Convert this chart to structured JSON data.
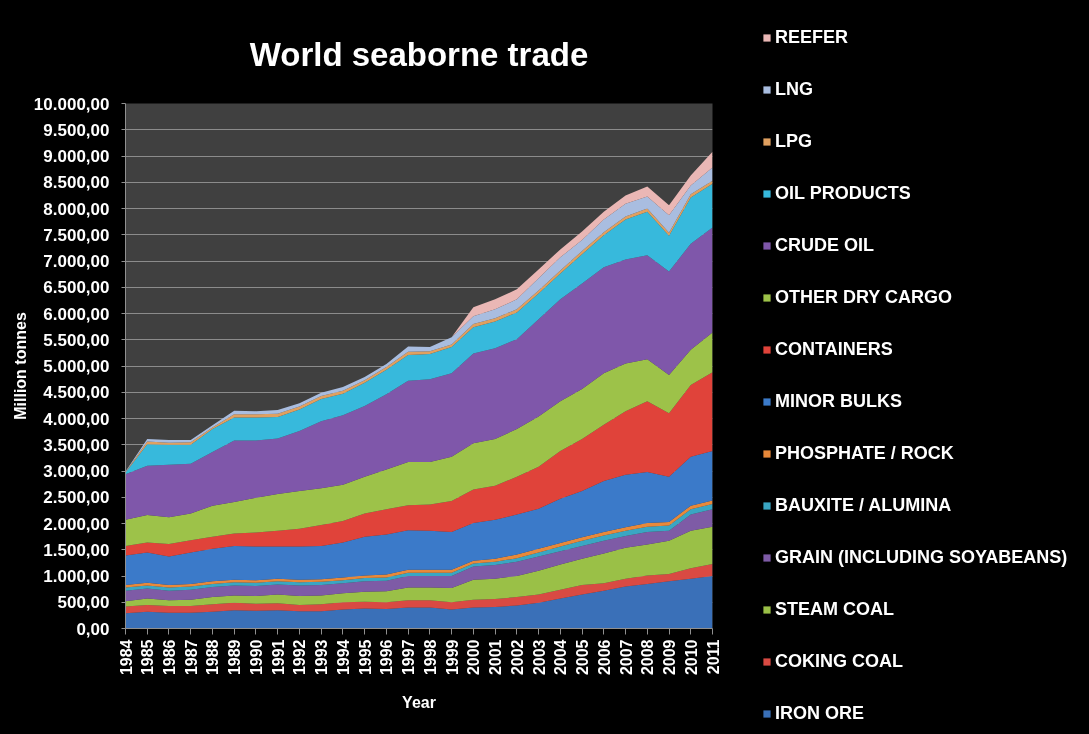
{
  "chart_data": {
    "type": "area",
    "stacked": true,
    "title": "World seaborne trade",
    "xlabel": "Year",
    "ylabel": "Million tonnes",
    "x": [
      1984,
      1985,
      1986,
      1987,
      1988,
      1989,
      1990,
      1991,
      1992,
      1993,
      1994,
      1995,
      1996,
      1997,
      1998,
      1999,
      2000,
      2001,
      2002,
      2003,
      2004,
      2005,
      2006,
      2007,
      2008,
      2009,
      2010,
      2011
    ],
    "xlim": [
      1984,
      2011
    ],
    "xticks": [
      1984,
      1985,
      1986,
      1987,
      1988,
      1989,
      1990,
      1991,
      1992,
      1993,
      1994,
      1995,
      1996,
      1997,
      1998,
      1999,
      2000,
      2001,
      2002,
      2003,
      2004,
      2005,
      2006,
      2007,
      2008,
      2009,
      2010,
      2011
    ],
    "ylim": [
      0,
      10000
    ],
    "yticks": [
      {
        "value": 0,
        "label": "0,00"
      },
      {
        "value": 500,
        "label": "500,00"
      },
      {
        "value": 1000,
        "label": "1.000,00"
      },
      {
        "value": 1500,
        "label": "1.500,00"
      },
      {
        "value": 2000,
        "label": "2.000,00"
      },
      {
        "value": 2500,
        "label": "2.500,00"
      },
      {
        "value": 3000,
        "label": "3.000,00"
      },
      {
        "value": 3500,
        "label": "3.500,00"
      },
      {
        "value": 4000,
        "label": "4.000,00"
      },
      {
        "value": 4500,
        "label": "4.500,00"
      },
      {
        "value": 5000,
        "label": "5.000,00"
      },
      {
        "value": 5500,
        "label": "5.500,00"
      },
      {
        "value": 6000,
        "label": "6.000,00"
      },
      {
        "value": 6500,
        "label": "6.500,00"
      },
      {
        "value": 7000,
        "label": "7.000,00"
      },
      {
        "value": 7500,
        "label": "7.500,00"
      },
      {
        "value": 8000,
        "label": "8.000,00"
      },
      {
        "value": 8500,
        "label": "8.500,00"
      },
      {
        "value": 9000,
        "label": "9.000,00"
      },
      {
        "value": 9500,
        "label": "9.500,00"
      },
      {
        "value": 10000,
        "label": "10.000,00"
      }
    ],
    "grid": "y",
    "legend": "right",
    "series": [
      {
        "name": "IRON ORE",
        "color": "#3a70b8",
        "values": [
          290,
          320,
          300,
          300,
          320,
          350,
          340,
          350,
          330,
          330,
          360,
          380,
          370,
          400,
          400,
          360,
          400,
          410,
          440,
          490,
          570,
          650,
          720,
          800,
          850,
          900,
          950,
          1000
        ]
      },
      {
        "name": "COKING COAL",
        "color": "#d94a43",
        "values": [
          130,
          130,
          130,
          130,
          140,
          140,
          130,
          130,
          120,
          130,
          140,
          130,
          130,
          140,
          140,
          140,
          150,
          150,
          160,
          160,
          170,
          180,
          140,
          150,
          160,
          140,
          200,
          230
        ]
      },
      {
        "name": "STEAM COAL",
        "color": "#9ac047",
        "values": [
          100,
          120,
          110,
          120,
          140,
          140,
          150,
          170,
          170,
          170,
          170,
          190,
          210,
          240,
          240,
          270,
          380,
          390,
          400,
          450,
          480,
          500,
          570,
          590,
          590,
          630,
          710,
          710
        ]
      },
      {
        "name": "GRAIN (INCLUDING SOYABEANS)",
        "color": "#7e5ba6",
        "values": [
          200,
          190,
          180,
          190,
          190,
          190,
          190,
          190,
          200,
          200,
          190,
          200,
          200,
          220,
          220,
          230,
          250,
          260,
          270,
          270,
          250,
          240,
          240,
          220,
          240,
          190,
          310,
          330
        ]
      },
      {
        "name": "BAUXITE / ALUMINA",
        "color": "#3aa6c3",
        "values": [
          60,
          60,
          60,
          60,
          60,
          60,
          60,
          60,
          60,
          60,
          60,
          60,
          60,
          60,
          60,
          60,
          60,
          60,
          70,
          80,
          90,
          100,
          100,
          100,
          100,
          100,
          100,
          100
        ]
      },
      {
        "name": "PHOSPHATE / ROCK",
        "color": "#e8893a",
        "values": [
          50,
          50,
          50,
          50,
          50,
          50,
          50,
          50,
          50,
          50,
          50,
          50,
          60,
          60,
          60,
          60,
          50,
          60,
          70,
          70,
          70,
          70,
          70,
          70,
          70,
          70,
          70,
          70
        ]
      },
      {
        "name": "MINOR BULKS",
        "color": "#3b7ac9",
        "values": [
          560,
          580,
          540,
          600,
          620,
          640,
          640,
          610,
          630,
          630,
          670,
          740,
          760,
          750,
          740,
          720,
          720,
          740,
          760,
          760,
          840,
          880,
          970,
          1000,
          970,
          860,
          930,
          940
        ]
      },
      {
        "name": "CONTAINERS",
        "color": "#e0433a",
        "values": [
          180,
          190,
          240,
          230,
          230,
          240,
          270,
          300,
          340,
          400,
          410,
          440,
          480,
          480,
          500,
          590,
          640,
          650,
          720,
          800,
          910,
          990,
          1070,
          1210,
          1350,
          1210,
          1370,
          1500
        ]
      },
      {
        "name": "OTHER DRY CARGO",
        "color": "#9dc249",
        "values": [
          500,
          520,
          510,
          510,
          590,
          600,
          660,
          700,
          720,
          700,
          690,
          700,
          760,
          820,
          810,
          840,
          880,
          890,
          910,
          960,
          950,
          950,
          980,
          910,
          800,
          730,
          670,
          760
        ]
      },
      {
        "name": "CRUDE OIL",
        "color": "#7f57aa",
        "values": [
          870,
          940,
          1000,
          950,
          1020,
          1170,
          1090,
          1060,
          1140,
          1280,
          1320,
          1350,
          1430,
          1550,
          1580,
          1590,
          1710,
          1730,
          1710,
          1850,
          1940,
          2010,
          2020,
          1980,
          1980,
          1970,
          2020,
          2000
        ]
      },
      {
        "name": "OIL PRODUCTS",
        "color": "#37b9dc",
        "values": [
          30,
          410,
          380,
          360,
          440,
          440,
          440,
          410,
          410,
          420,
          410,
          440,
          470,
          490,
          480,
          500,
          500,
          510,
          510,
          490,
          490,
          560,
          610,
          760,
          830,
          680,
          880,
          830
        ]
      },
      {
        "name": "LPG",
        "color": "#e0a060",
        "values": [
          10,
          50,
          40,
          50,
          30,
          60,
          60,
          60,
          60,
          60,
          60,
          50,
          50,
          60,
          50,
          50,
          60,
          60,
          60,
          60,
          60,
          60,
          60,
          60,
          60,
          60,
          60,
          60
        ]
      },
      {
        "name": "LNG",
        "color": "#a9bde0",
        "values": [
          10,
          50,
          50,
          40,
          40,
          70,
          60,
          70,
          60,
          60,
          70,
          60,
          60,
          100,
          80,
          140,
          150,
          170,
          190,
          230,
          250,
          210,
          240,
          240,
          230,
          330,
          170,
          250
        ]
      },
      {
        "name": "REEFER",
        "color": "#eab7b5",
        "values": [
          0,
          0,
          0,
          0,
          0,
          0,
          0,
          0,
          0,
          0,
          0,
          0,
          0,
          0,
          0,
          0,
          170,
          190,
          190,
          170,
          150,
          160,
          150,
          160,
          190,
          190,
          190,
          300
        ]
      }
    ]
  }
}
